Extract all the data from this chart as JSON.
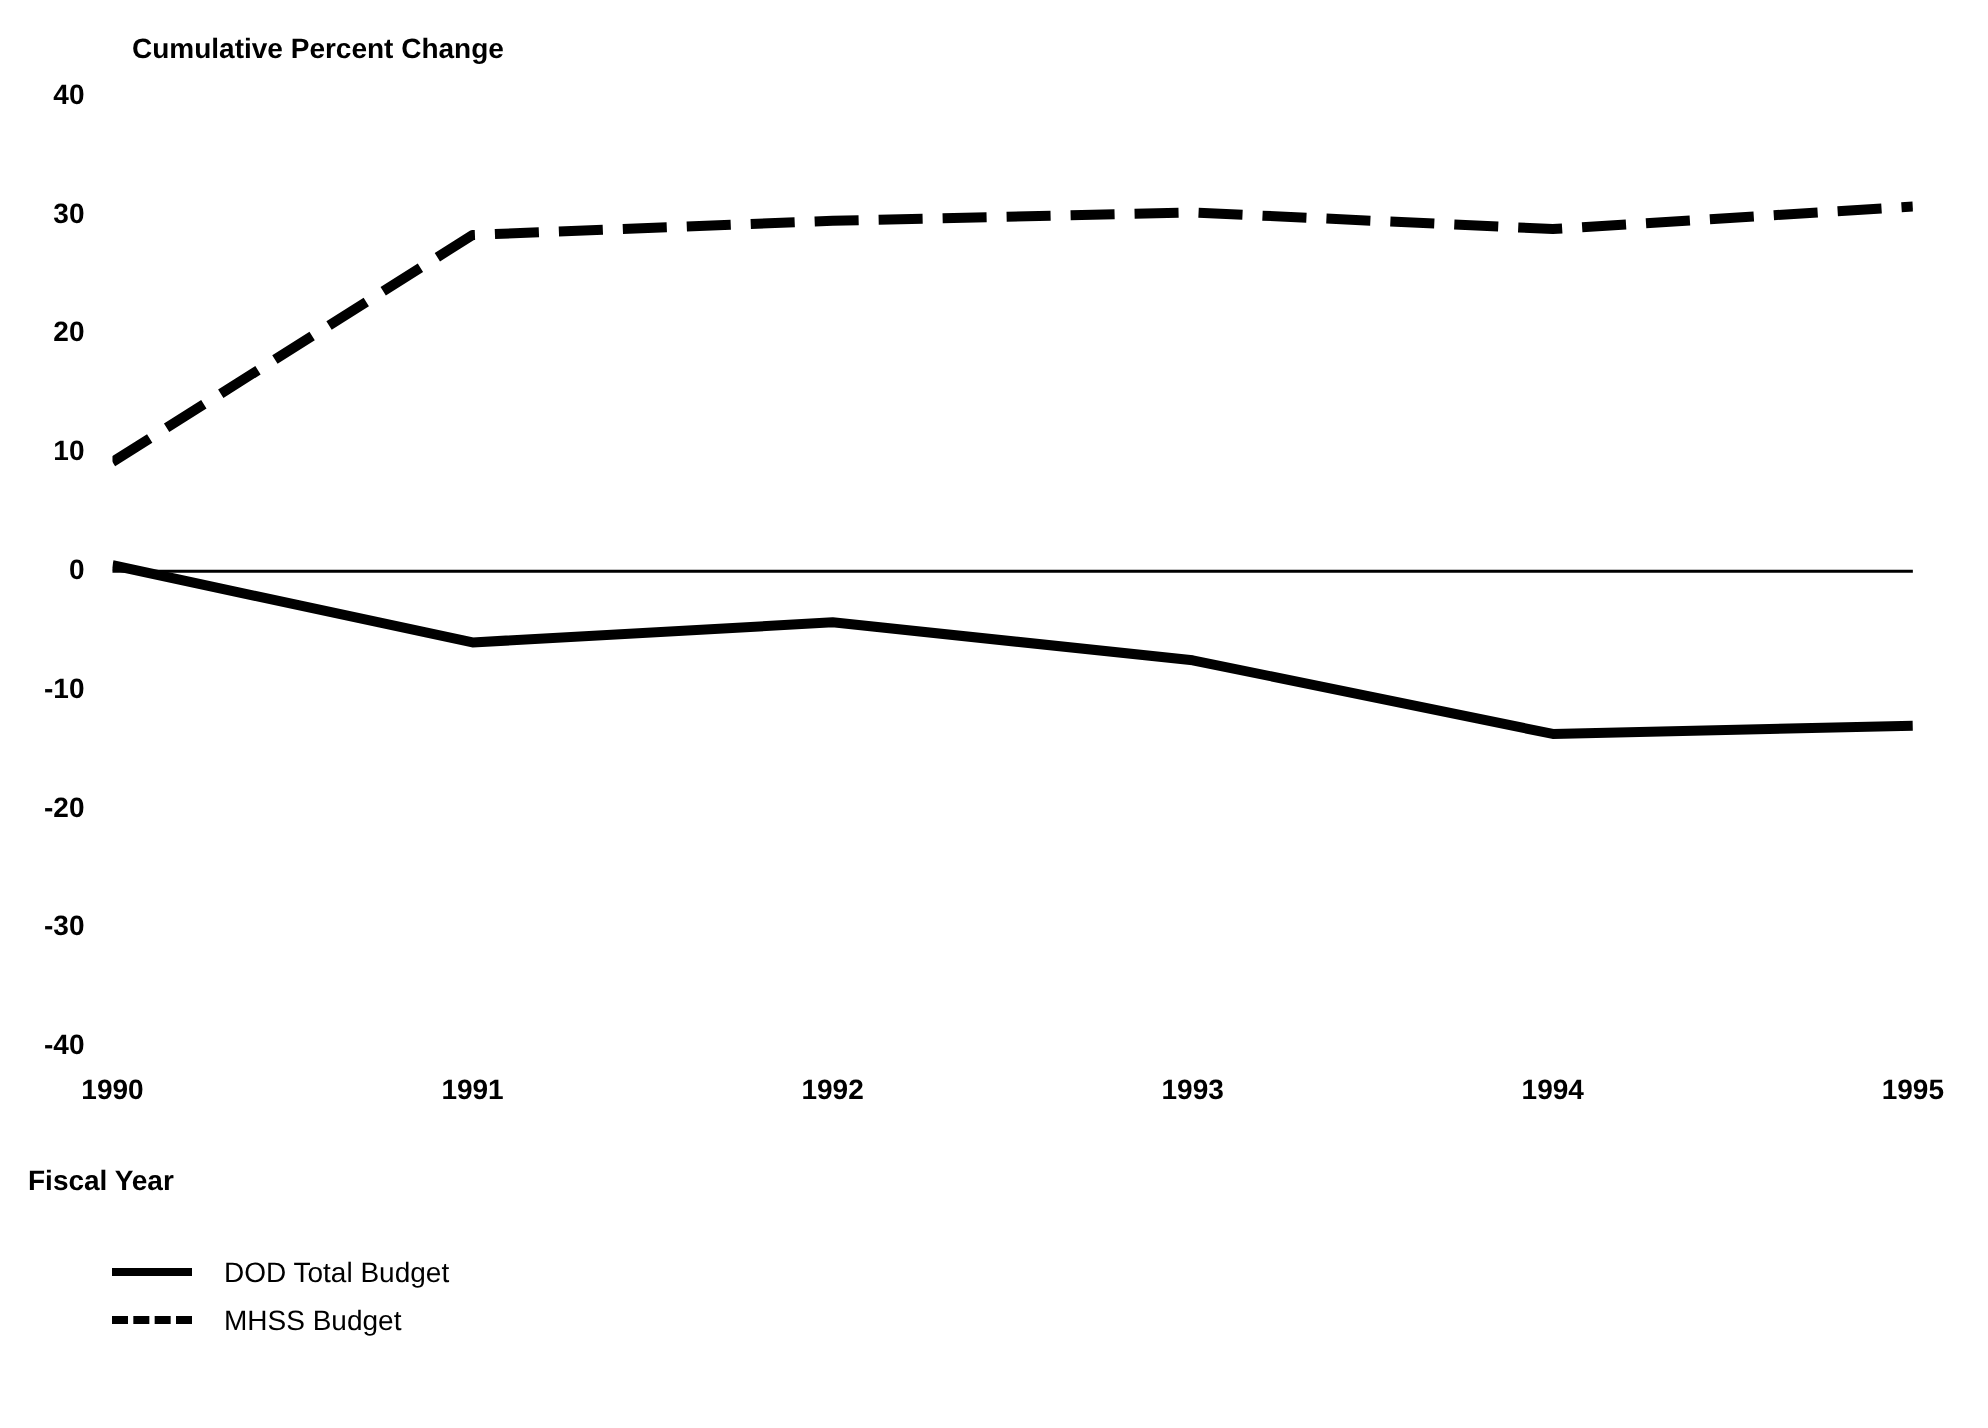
{
  "chart_data": {
    "type": "line",
    "ylabel": "Cumulative Percent Change",
    "xlabel": "Fiscal Year",
    "x": [
      1990,
      1991,
      1992,
      1993,
      1994,
      1995
    ],
    "series": [
      {
        "name": "DOD Total Budget",
        "color": "#000000",
        "line_style": "solid",
        "values": [
          0.5,
          -6,
          -4.3,
          -7.5,
          -13.7,
          -13
        ]
      },
      {
        "name": "MHSS Budget",
        "color": "#000000",
        "line_style": "dashed",
        "values": [
          9.2,
          28.3,
          29.5,
          30.2,
          28.8,
          30.7
        ]
      }
    ],
    "xlim": [
      1990,
      1995
    ],
    "xticks": [
      1990,
      1991,
      1992,
      1993,
      1994,
      1995
    ],
    "ylim": [
      -40,
      40
    ],
    "yticks": [
      -40,
      -30,
      -20,
      -10,
      0,
      10,
      20,
      30,
      40
    ],
    "ref_lines": [
      {
        "axis": "y",
        "value": 0,
        "color": "#000000",
        "line_style": "solid"
      }
    ],
    "grid": false,
    "legend": "bottom left",
    "marker": "none"
  }
}
